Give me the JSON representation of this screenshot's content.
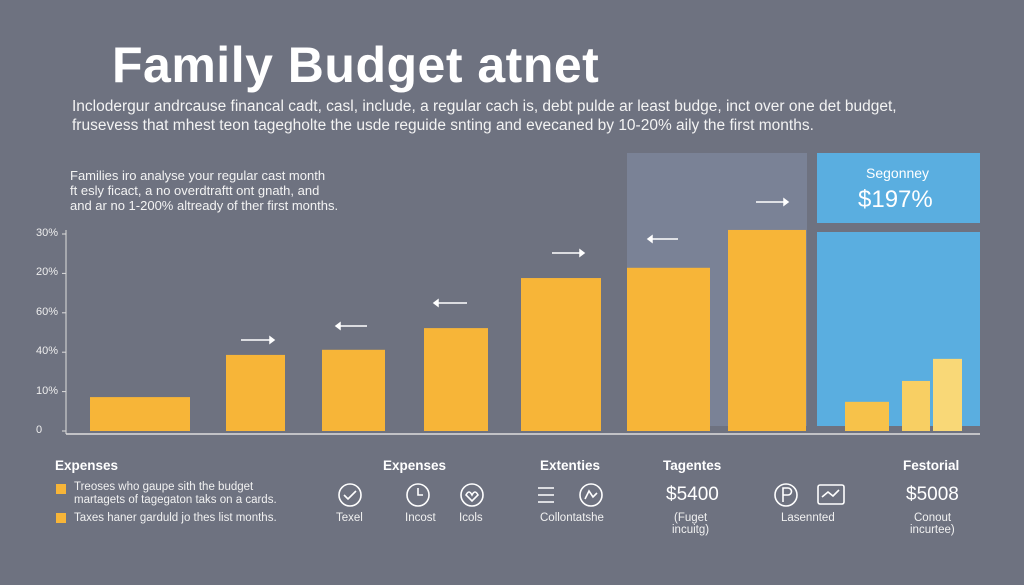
{
  "header": {
    "title": "Family Budget atnet",
    "subtitle": [
      "Inclodergur andrcause financal cadt, casl, include, a regular cach is, debt pulde ar least budge, inct over one det budget,",
      "frusevess that mhest teon tagegholte the usde reguide snting and evecaned by 10-20% aily the first months."
    ]
  },
  "note": [
    "Families iro analyse your regular cast month",
    "ft esly ficact, a no overdtraftt ont gnath, and",
    "and ar no 1-200% altready of ther first months."
  ],
  "chart_data": {
    "type": "bar",
    "y_labels": [
      "0",
      "10%",
      "40%",
      "60%",
      "20%",
      "30%"
    ],
    "categories": [
      null,
      null,
      null,
      null,
      null,
      null,
      null
    ],
    "values": [
      0.86,
      1.93,
      2.06,
      2.61,
      3.88,
      4.14,
      5.1
    ],
    "color": "#f7b538",
    "ylim": [
      0,
      5.2
    ]
  },
  "panel": {
    "label": "Segonney",
    "value_text": "$197%",
    "chart": {
      "type": "bar",
      "values": [
        0.74,
        1.27,
        1.83
      ],
      "colors": [
        "#f7c24a",
        "#f8cf63",
        "#f9d877"
      ]
    }
  },
  "footer": {
    "col1": {
      "heading": "Expenses",
      "items": [
        [
          "Treoses who gaupe sith the budget",
          "martagets of tagegaton taks on a cards."
        ],
        [
          "Taxes haner garduld jo thes list months."
        ]
      ]
    },
    "headings": [
      "Expenses",
      "Extenties",
      "Tagentes",
      "Festorial"
    ],
    "labels": [
      "Texel",
      "Incost",
      "Icols",
      "Collontatshe",
      "Lasennted"
    ],
    "amounts": [
      "$5400",
      "$5008"
    ],
    "captions": [
      [
        "(Fuget",
        "incuitg)"
      ],
      [
        "Conout",
        "incurtee)"
      ]
    ]
  }
}
